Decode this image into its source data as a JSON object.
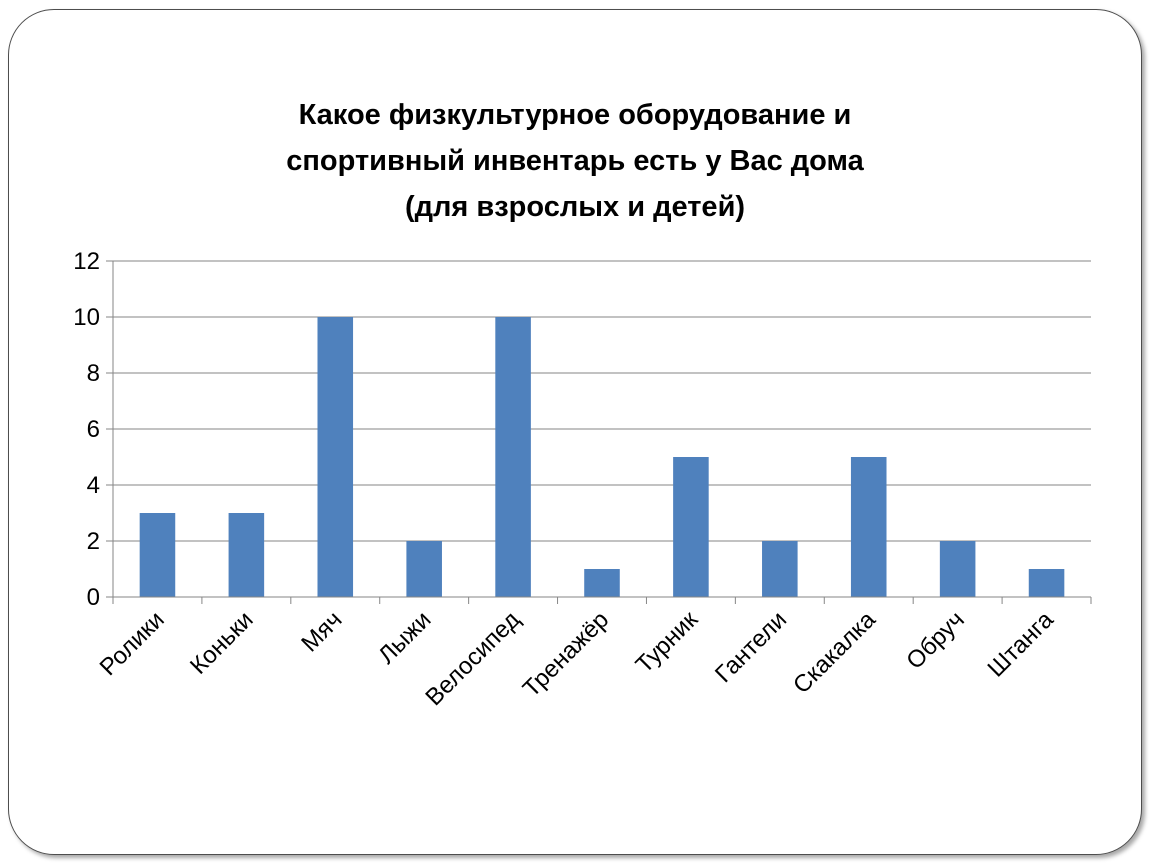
{
  "slide": {
    "title_lines": [
      "Какое физкультурное оборудование и",
      "спортивный инвентарь есть у Вас дома",
      "(для взрослых и детей)"
    ]
  },
  "chart_data": {
    "type": "bar",
    "title": "Какое физкультурное оборудование и спортивный инвентарь есть у Вас дома (для взрослых и детей)",
    "categories": [
      "Ролики",
      "Коньки",
      "Мяч",
      "Лыжи",
      "Велосипед",
      "Тренажёр",
      "Турник",
      "Гантели",
      "Скакалка",
      "Обруч",
      "Штанга"
    ],
    "values": [
      3,
      3,
      10,
      2,
      10,
      1,
      5,
      2,
      5,
      2,
      1
    ],
    "xlabel": "",
    "ylabel": "",
    "ylim": [
      0,
      12
    ],
    "yticks": [
      0,
      2,
      4,
      6,
      8,
      10,
      12
    ],
    "grid": true,
    "legend": "none",
    "colors": {
      "bar": "#4F81BD",
      "grid": "#868686",
      "axis": "#868686"
    }
  }
}
